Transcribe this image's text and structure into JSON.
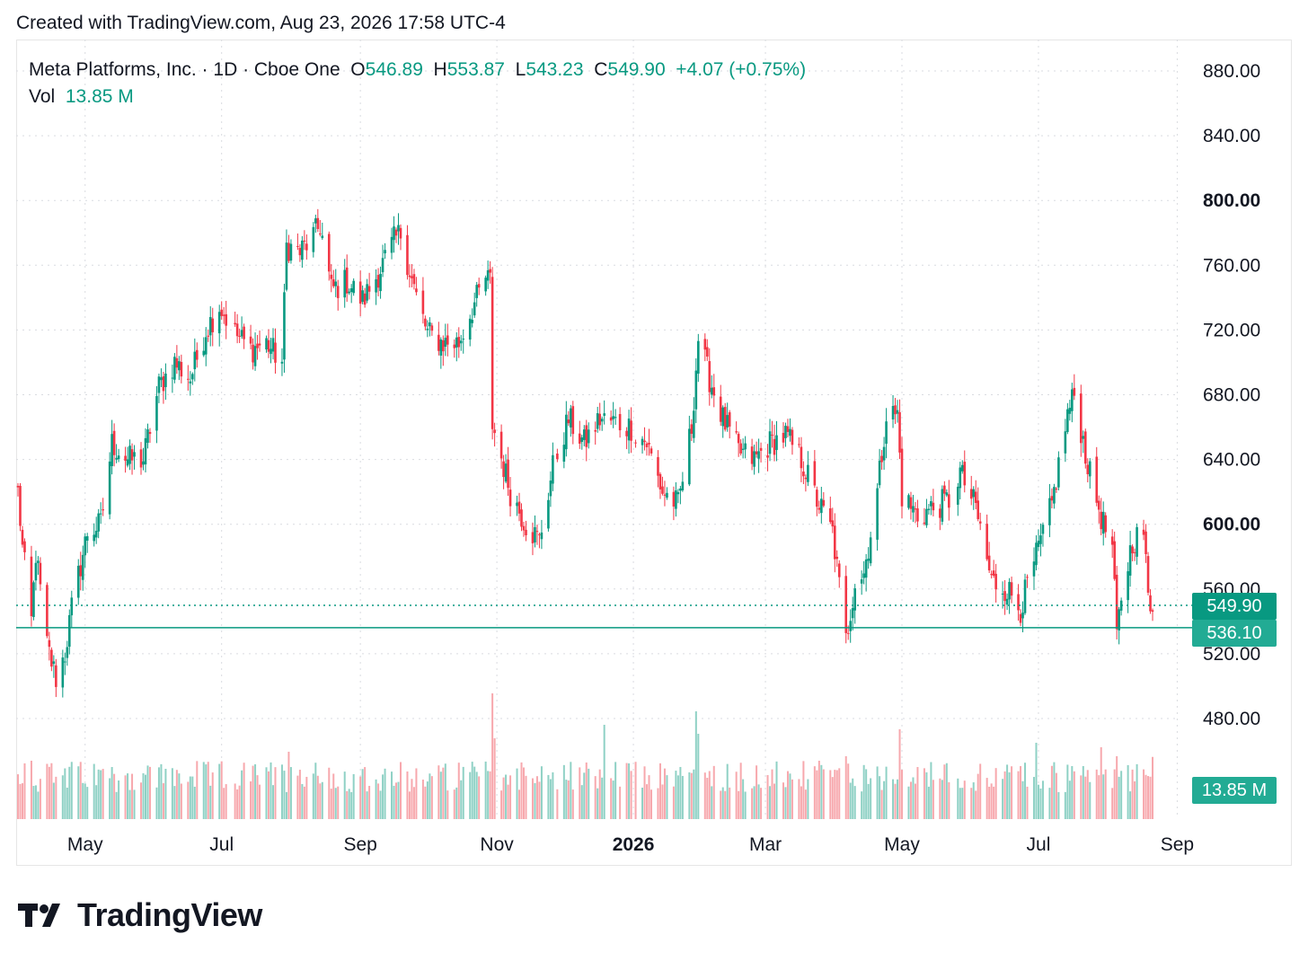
{
  "header": {
    "caption": "Created with TradingView.com, Aug 23, 2026 17:58 UTC-4"
  },
  "legend": {
    "symbol": "Meta Platforms, Inc. · 1D · Cboe One",
    "o_label": "O",
    "o_value": "546.89",
    "h_label": "H",
    "h_value": "553.87",
    "l_label": "L",
    "l_value": "543.23",
    "c_label": "C",
    "c_value": "549.90",
    "change": "+4.07 (+0.75%)",
    "vol_label": "Vol",
    "vol_value": "13.85 M"
  },
  "badges": {
    "last_price": "549.90",
    "line_price": "536.10",
    "volume": "13.85 M"
  },
  "logo": {
    "text": "TradingView"
  },
  "colors": {
    "up": "#089981",
    "down": "#f23645",
    "up_vol": "#8fd1c5",
    "down_vol": "#f7a8ad",
    "grid": "#d9dbe0",
    "line": "#089981"
  },
  "chart_data": {
    "type": "candlestick",
    "ylim": [
      460,
      900
    ],
    "y_ticks": [
      {
        "value": 880,
        "label": "880.00",
        "bold": false
      },
      {
        "value": 840,
        "label": "840.00",
        "bold": false
      },
      {
        "value": 800,
        "label": "800.00",
        "bold": true
      },
      {
        "value": 760,
        "label": "760.00",
        "bold": false
      },
      {
        "value": 720,
        "label": "720.00",
        "bold": false
      },
      {
        "value": 680,
        "label": "680.00",
        "bold": false
      },
      {
        "value": 640,
        "label": "640.00",
        "bold": false
      },
      {
        "value": 600,
        "label": "600.00",
        "bold": true
      },
      {
        "value": 560,
        "label": "560.00",
        "bold": false
      },
      {
        "value": 520,
        "label": "520.00",
        "bold": false
      },
      {
        "value": 480,
        "label": "480.00",
        "bold": false
      }
    ],
    "x_ticks": [
      {
        "label": "May",
        "bold": false
      },
      {
        "label": "Jul",
        "bold": false
      },
      {
        "label": "Sep",
        "bold": false
      },
      {
        "label": "Nov",
        "bold": false
      },
      {
        "label": "2026",
        "bold": true
      },
      {
        "label": "Mar",
        "bold": false
      },
      {
        "label": "May",
        "bold": false
      },
      {
        "label": "Jul",
        "bold": false
      },
      {
        "label": "Sep",
        "bold": false
      }
    ],
    "last_price": 549.9,
    "horizontal_line": 536.1,
    "anchors": [
      [
        "2025-04-01",
        620
      ],
      [
        "2025-04-03",
        585
      ],
      [
        "2025-04-07",
        540
      ],
      [
        "2025-04-09",
        582
      ],
      [
        "2025-04-14",
        525
      ],
      [
        "2025-04-18",
        505
      ],
      [
        "2025-04-22",
        520
      ],
      [
        "2025-04-25",
        548
      ],
      [
        "2025-05-02",
        595
      ],
      [
        "2025-05-08",
        600
      ],
      [
        "2025-05-13",
        650
      ],
      [
        "2025-05-20",
        640
      ],
      [
        "2025-05-27",
        640
      ],
      [
        "2025-06-03",
        685
      ],
      [
        "2025-06-10",
        700
      ],
      [
        "2025-06-17",
        690
      ],
      [
        "2025-06-24",
        720
      ],
      [
        "2025-06-30",
        735
      ],
      [
        "2025-07-07",
        718
      ],
      [
        "2025-07-14",
        708
      ],
      [
        "2025-07-21",
        712
      ],
      [
        "2025-07-28",
        700
      ],
      [
        "2025-07-30",
        772
      ],
      [
        "2025-08-05",
        768
      ],
      [
        "2025-08-12",
        780
      ],
      [
        "2025-08-14",
        785
      ],
      [
        "2025-08-19",
        745
      ],
      [
        "2025-08-26",
        750
      ],
      [
        "2025-09-02",
        738
      ],
      [
        "2025-09-09",
        755
      ],
      [
        "2025-09-16",
        775
      ],
      [
        "2025-09-19",
        780
      ],
      [
        "2025-09-26",
        740
      ],
      [
        "2025-10-01",
        718
      ],
      [
        "2025-10-08",
        712
      ],
      [
        "2025-10-15",
        712
      ],
      [
        "2025-10-20",
        730
      ],
      [
        "2025-10-27",
        752
      ],
      [
        "2025-10-29",
        750
      ],
      [
        "2025-10-30",
        662
      ],
      [
        "2025-11-07",
        620
      ],
      [
        "2025-11-14",
        600
      ],
      [
        "2025-11-20",
        590
      ],
      [
        "2025-11-26",
        635
      ],
      [
        "2025-12-03",
        665
      ],
      [
        "2025-12-10",
        650
      ],
      [
        "2025-12-17",
        665
      ],
      [
        "2025-12-24",
        663
      ],
      [
        "2025-12-31",
        660
      ],
      [
        "2026-01-07",
        650
      ],
      [
        "2026-01-14",
        620
      ],
      [
        "2026-01-21",
        612
      ],
      [
        "2026-01-27",
        660
      ],
      [
        "2026-01-30",
        715
      ],
      [
        "2026-02-04",
        690
      ],
      [
        "2026-02-10",
        665
      ],
      [
        "2026-02-17",
        645
      ],
      [
        "2026-02-24",
        640
      ],
      [
        "2026-03-03",
        650
      ],
      [
        "2026-03-10",
        655
      ],
      [
        "2026-03-17",
        640
      ],
      [
        "2026-03-24",
        615
      ],
      [
        "2026-03-31",
        595
      ],
      [
        "2026-04-06",
        528
      ],
      [
        "2026-04-10",
        565
      ],
      [
        "2026-04-14",
        570
      ],
      [
        "2026-04-20",
        620
      ],
      [
        "2026-04-24",
        668
      ],
      [
        "2026-04-29",
        668
      ],
      [
        "2026-05-01",
        618
      ],
      [
        "2026-05-08",
        605
      ],
      [
        "2026-05-15",
        610
      ],
      [
        "2026-05-22",
        615
      ],
      [
        "2026-05-27",
        632
      ],
      [
        "2026-06-03",
        610
      ],
      [
        "2026-06-10",
        565
      ],
      [
        "2026-06-17",
        560
      ],
      [
        "2026-06-23",
        548
      ],
      [
        "2026-06-30",
        580
      ],
      [
        "2026-07-07",
        612
      ],
      [
        "2026-07-14",
        668
      ],
      [
        "2026-07-17",
        680
      ],
      [
        "2026-07-24",
        630
      ],
      [
        "2026-07-30",
        600
      ],
      [
        "2026-08-03",
        585
      ],
      [
        "2026-08-05",
        530
      ],
      [
        "2026-08-07",
        555
      ],
      [
        "2026-08-12",
        590
      ],
      [
        "2026-08-17",
        595
      ],
      [
        "2026-08-19",
        555
      ],
      [
        "2026-08-21",
        546
      ],
      [
        "2026-08-23",
        549.9
      ]
    ],
    "volume": {
      "max": 30,
      "last": 13.85,
      "spikes": [
        [
          "2025-10-30",
          28
        ],
        [
          "2025-10-31",
          18
        ],
        [
          "2026-01-29",
          24
        ],
        [
          "2026-01-30",
          19
        ],
        [
          "2025-12-19",
          21
        ],
        [
          "2026-04-06",
          14
        ],
        [
          "2026-04-30",
          20
        ],
        [
          "2025-07-31",
          15
        ],
        [
          "2026-06-30",
          17
        ],
        [
          "2026-07-29",
          16
        ],
        [
          "2026-08-05",
          14
        ],
        [
          "2025-04-07",
          13
        ]
      ]
    }
  }
}
